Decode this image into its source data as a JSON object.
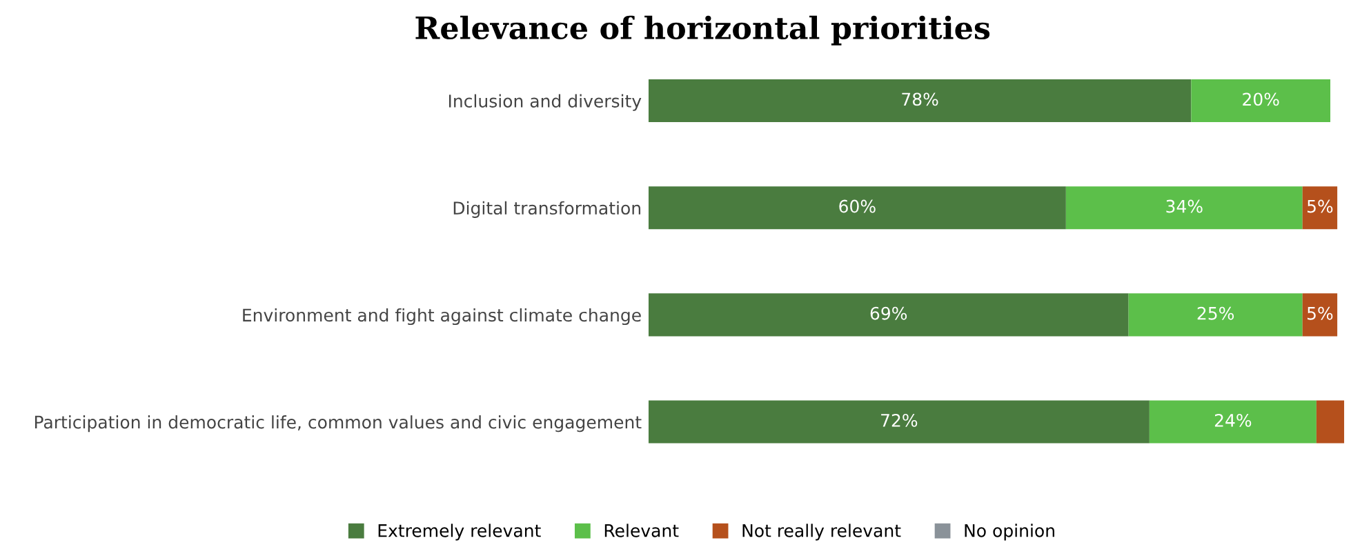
{
  "chart_data": {
    "type": "bar",
    "orientation": "horizontal",
    "stacked": true,
    "title": "Relevance of horizontal priorities",
    "categories": [
      "Inclusion and diversity",
      "Digital transformation",
      "Environment and fight against climate change",
      "Participation in democratic life, common values and civic engagement"
    ],
    "series": [
      {
        "name": "Extremely relevant",
        "color": "#4a7c3f",
        "values": [
          78,
          60,
          69,
          72
        ],
        "value_labels": [
          "78%",
          "60%",
          "69%",
          "72%"
        ]
      },
      {
        "name": "Relevant",
        "color": "#5cbf4a",
        "values": [
          20,
          34,
          25,
          24
        ],
        "value_labels": [
          "20%",
          "34%",
          "25%",
          "24%"
        ]
      },
      {
        "name": "Not really relevant",
        "color": "#b5501c",
        "values": [
          null,
          5,
          5,
          4
        ],
        "value_labels": [
          null,
          "5%",
          "5%",
          null
        ]
      },
      {
        "name": "No opinion",
        "color": "#8a9299",
        "values": [
          null,
          null,
          null,
          null
        ]
      }
    ],
    "xlim": [
      0,
      100
    ],
    "legend": "bottom",
    "grid": false
  }
}
